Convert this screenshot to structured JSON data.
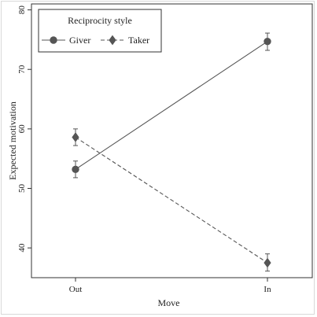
{
  "chart_data": {
    "type": "line",
    "categories": [
      "Out",
      "In"
    ],
    "xlabel": "Move",
    "ylabel": "Expected motivation",
    "ylim": [
      35,
      81
    ],
    "yticks": [
      40,
      50,
      60,
      70,
      80
    ],
    "legend": {
      "title": "Reciprocity style",
      "position": "top-left"
    },
    "series": [
      {
        "name": "Giver",
        "values": [
          53.2,
          74.7
        ],
        "ci_low": [
          51.8,
          73.2
        ],
        "ci_high": [
          54.6,
          76.1
        ],
        "marker": "circle",
        "line_style": "solid",
        "color": "#555555"
      },
      {
        "name": "Taker",
        "values": [
          58.6,
          37.5
        ],
        "ci_low": [
          57.2,
          36.1
        ],
        "ci_high": [
          60.0,
          39.0
        ],
        "marker": "diamond",
        "line_style": "dashed",
        "color": "#555555"
      }
    ]
  }
}
